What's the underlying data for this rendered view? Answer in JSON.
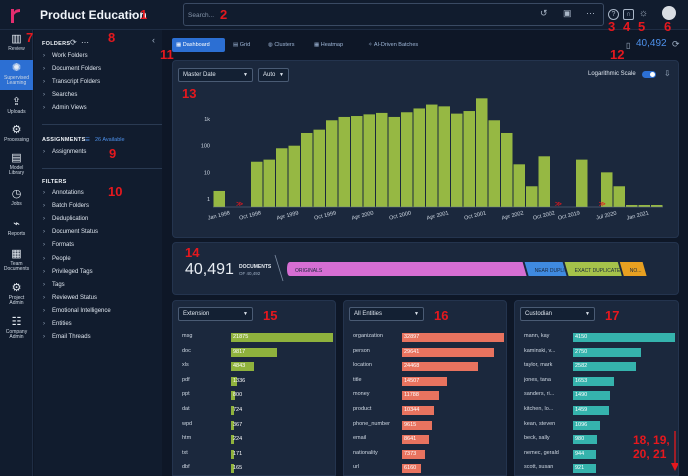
{
  "app": {
    "title": "Product Education"
  },
  "annotations": [
    "1",
    "2",
    "3",
    "4",
    "5",
    "6",
    "7",
    "8",
    "9",
    "10",
    "11",
    "12",
    "13",
    "14",
    "15",
    "16",
    "17",
    "18, 19,",
    "20, 21"
  ],
  "search": {
    "placeholder": "Search..."
  },
  "rail": [
    {
      "label": "Review",
      "icon": "review-icon"
    },
    {
      "label": "Supervised\nLearning",
      "icon": "lightbulb-icon"
    },
    {
      "label": "Uploads",
      "icon": "upload-icon"
    },
    {
      "label": "Processing",
      "icon": "processing-icon"
    },
    {
      "label": "Model\nLibrary",
      "icon": "model-library-icon"
    },
    {
      "label": "Jobs",
      "icon": "jobs-icon"
    },
    {
      "label": "Reports",
      "icon": "reports-icon"
    },
    {
      "label": "Team\nDocuments",
      "icon": "team-documents-icon"
    },
    {
      "label": "Project\nAdmin",
      "icon": "project-admin-icon"
    },
    {
      "label": "Company\nAdmin",
      "icon": "company-admin-icon"
    }
  ],
  "folders": {
    "heading": "FOLDERS",
    "items": [
      "Work Folders",
      "Document Folders",
      "Transcript Folders",
      "Searches",
      "Admin Views"
    ]
  },
  "assignments": {
    "heading": "ASSIGNMENTS",
    "available": "26 Available",
    "items": [
      "Assignments"
    ]
  },
  "filters": {
    "heading": "FILTERS",
    "items": [
      "Annotations",
      "Batch Folders",
      "Deduplication",
      "Document Status",
      "Formats",
      "People",
      "Privileged Tags",
      "Tags",
      "Reviewed Status",
      "Emotional Intelligence",
      "Entities",
      "Email Threads"
    ]
  },
  "tabs": [
    "Dashboard",
    "Grid",
    "Clusters",
    "Heatmap",
    "AI-Driven Batches"
  ],
  "doc_count": "40,492",
  "timeline": {
    "date_field": "Master Date",
    "interval": "Auto",
    "log_label": "Logarithmic Scale"
  },
  "documents": {
    "count": "40,491",
    "label": "DOCUMENTS",
    "of": "OF 40,492",
    "segments": [
      {
        "name": "ORIGINALS",
        "fraction": 0.62
      },
      {
        "name": "NEAR DUPLICATES",
        "fraction": 0.1
      },
      {
        "name": "EXACT DUPLICATES",
        "fraction": 0.14
      },
      {
        "name": "NO...",
        "fraction": 0.06
      }
    ]
  },
  "extension_panel": {
    "select": "Extension",
    "rows": [
      {
        "label": "msg",
        "value": "21875"
      },
      {
        "label": "doc",
        "value": "9817"
      },
      {
        "label": "xls",
        "value": "4843"
      },
      {
        "label": "pdf",
        "value": "1336"
      },
      {
        "label": "ppt",
        "value": "800"
      },
      {
        "label": "dat",
        "value": "724"
      },
      {
        "label": "wpd",
        "value": "367"
      },
      {
        "label": "htm",
        "value": "224"
      },
      {
        "label": "txt",
        "value": "171"
      },
      {
        "label": "dbf",
        "value": "165"
      }
    ]
  },
  "entities_panel": {
    "select": "All Entities",
    "rows": [
      {
        "label": "organization",
        "value": "32897"
      },
      {
        "label": "person",
        "value": "29641"
      },
      {
        "label": "location",
        "value": "24468"
      },
      {
        "label": "title",
        "value": "14507"
      },
      {
        "label": "money",
        "value": "11788"
      },
      {
        "label": "product",
        "value": "10344"
      },
      {
        "label": "phone_number",
        "value": "9615"
      },
      {
        "label": "email",
        "value": "8641"
      },
      {
        "label": "nationality",
        "value": "7373"
      },
      {
        "label": "url",
        "value": "6160"
      }
    ]
  },
  "custodian_panel": {
    "select": "Custodian",
    "rows": [
      {
        "label": "mann, kay",
        "value": "4150"
      },
      {
        "label": "kaminski, v...",
        "value": "2750"
      },
      {
        "label": "taylor, mark",
        "value": "2582"
      },
      {
        "label": "jones, tana",
        "value": "1653"
      },
      {
        "label": "sanders, ri...",
        "value": "1490"
      },
      {
        "label": "kitchen, lo...",
        "value": "1459"
      },
      {
        "label": "kean, steven",
        "value": "1096"
      },
      {
        "label": "beck, sally",
        "value": "980"
      },
      {
        "label": "nemec, gerald",
        "value": "944"
      },
      {
        "label": "scott, susan",
        "value": "921"
      }
    ]
  },
  "chart_data": {
    "type": "bar",
    "title": "",
    "ylog": true,
    "yticks": [
      "1",
      "10",
      "100",
      "1k"
    ],
    "ytick_values": [
      1,
      10,
      100,
      1000
    ],
    "xticks": [
      "Jan 1998",
      "Oct 1998",
      "Apr 1999",
      "Oct 1999",
      "Apr 2000",
      "Oct 2000",
      "Apr 2001",
      "Oct 2001",
      "Apr 2002",
      "Oct 2002",
      "Oct 2019",
      "Jul 2020",
      "Jan 2021"
    ],
    "values": [
      2,
      0,
      0,
      25,
      30,
      80,
      100,
      300,
      400,
      900,
      1200,
      1300,
      1500,
      1700,
      1200,
      1800,
      2500,
      3500,
      3000,
      1600,
      2000,
      6000,
      900,
      300,
      20,
      3,
      40,
      0,
      0,
      30,
      0,
      10,
      3,
      1,
      1,
      1
    ],
    "color": "#96b843"
  },
  "colors": {
    "accent": "#2c6fd3",
    "ext_bar": "#8fb23d",
    "ent_bar": "#e8735f",
    "cust_bar": "#35b3ad",
    "break_mark": "#e5181e"
  }
}
